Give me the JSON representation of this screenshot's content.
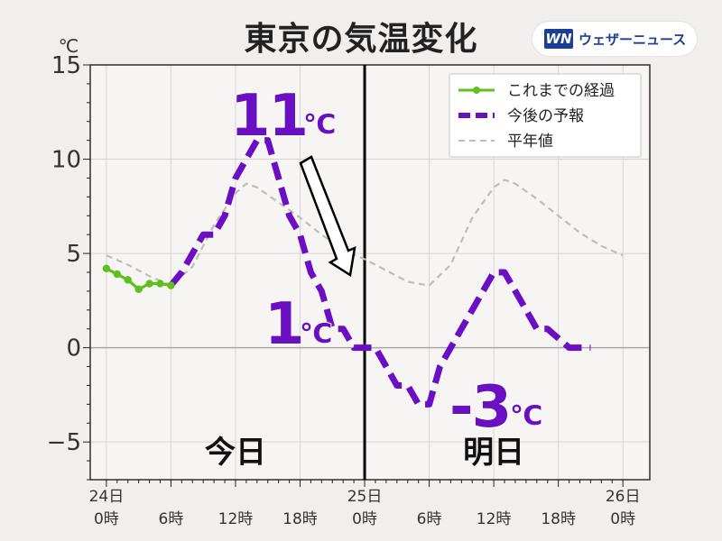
{
  "title": "東京の気温変化",
  "brand": {
    "logo": "WN",
    "name": "ウェザーニュース"
  },
  "chart_data": {
    "type": "line",
    "title": "東京の気温変化",
    "ylabel": "℃",
    "ylim": [
      -7,
      15
    ],
    "xlim": [
      -1.5,
      50.5
    ],
    "yticks": [
      {
        "v": 15,
        "label": "15"
      },
      {
        "v": 10,
        "label": "10"
      },
      {
        "v": 5,
        "label": "5"
      },
      {
        "v": 0,
        "label": "0"
      },
      {
        "v": -5,
        "label": "−5"
      }
    ],
    "xticks": [
      {
        "x": 0,
        "top": "24日",
        "bottom": "0時"
      },
      {
        "x": 6,
        "top": "",
        "bottom": "6時"
      },
      {
        "x": 12,
        "top": "",
        "bottom": "12時"
      },
      {
        "x": 18,
        "top": "",
        "bottom": "18時"
      },
      {
        "x": 24,
        "top": "25日",
        "bottom": "0時"
      },
      {
        "x": 30,
        "top": "",
        "bottom": "6時"
      },
      {
        "x": 36,
        "top": "",
        "bottom": "12時"
      },
      {
        "x": 42,
        "top": "",
        "bottom": "18時"
      },
      {
        "x": 48,
        "top": "26日",
        "bottom": "0時"
      }
    ],
    "day_divider_x": 24,
    "series": [
      {
        "name": "これまでの経過",
        "color": "#5fbf1c",
        "style": "solid-markers",
        "points": [
          [
            0,
            4.2
          ],
          [
            1,
            3.9
          ],
          [
            2,
            3.6
          ],
          [
            3,
            3.1
          ],
          [
            4,
            3.4
          ],
          [
            5,
            3.4
          ],
          [
            6,
            3.3
          ]
        ]
      },
      {
        "name": "今後の予報",
        "color": "#6a0fc2",
        "style": "dashed",
        "points": [
          [
            6,
            3.3
          ],
          [
            7,
            4.0
          ],
          [
            8,
            5.0
          ],
          [
            9,
            6.0
          ],
          [
            10,
            6.0
          ],
          [
            11,
            7.0
          ],
          [
            12,
            9.0
          ],
          [
            13,
            10.0
          ],
          [
            14,
            11.0
          ],
          [
            15,
            11.0
          ],
          [
            16,
            9.0
          ],
          [
            17,
            7.0
          ],
          [
            18,
            6.0
          ],
          [
            19,
            4.0
          ],
          [
            20,
            3.0
          ],
          [
            21,
            1.0
          ],
          [
            22,
            1.0
          ],
          [
            23,
            0.0
          ],
          [
            24,
            0.0
          ],
          [
            25,
            0.0
          ],
          [
            26,
            -1.0
          ],
          [
            27,
            -2.0
          ],
          [
            28,
            -2.0
          ],
          [
            29,
            -3.0
          ],
          [
            30,
            -3.0
          ],
          [
            31,
            -1.0
          ],
          [
            32,
            0.0
          ],
          [
            33,
            1.0
          ],
          [
            34,
            2.0
          ],
          [
            35,
            3.0
          ],
          [
            36,
            4.0
          ],
          [
            37,
            4.0
          ],
          [
            38,
            3.0
          ],
          [
            39,
            2.0
          ],
          [
            40,
            1.0
          ],
          [
            41,
            1.0
          ],
          [
            42,
            0.5
          ],
          [
            43,
            0.0
          ],
          [
            44,
            0.0
          ],
          [
            45,
            0.0
          ]
        ]
      },
      {
        "name": "平年値",
        "color": "#bdbdbd",
        "style": "thin-dashed",
        "points": [
          [
            0,
            4.9
          ],
          [
            2,
            4.4
          ],
          [
            4,
            3.8
          ],
          [
            6,
            3.3
          ],
          [
            8,
            4.3
          ],
          [
            10,
            6.5
          ],
          [
            12,
            8.2
          ],
          [
            13,
            8.7
          ],
          [
            14,
            8.5
          ],
          [
            16,
            7.7
          ],
          [
            18,
            6.9
          ],
          [
            20,
            6.0
          ],
          [
            22,
            5.2
          ],
          [
            24,
            4.7
          ],
          [
            26,
            4.1
          ],
          [
            28,
            3.5
          ],
          [
            30,
            3.3
          ],
          [
            32,
            4.4
          ],
          [
            34,
            6.9
          ],
          [
            36,
            8.5
          ],
          [
            37,
            8.9
          ],
          [
            38,
            8.7
          ],
          [
            40,
            7.9
          ],
          [
            42,
            7.0
          ],
          [
            44,
            6.1
          ],
          [
            46,
            5.4
          ],
          [
            48,
            4.9
          ]
        ]
      }
    ],
    "legend_position": "top-right",
    "annotations": [
      {
        "value": "11",
        "unit": "℃",
        "x": 15,
        "y": 11,
        "color": "#6a0fc2"
      },
      {
        "value": "1",
        "unit": "℃",
        "x": 21,
        "y": 1,
        "color": "#6a0fc2"
      },
      {
        "value": "-3",
        "unit": "℃",
        "x": 29,
        "y": -3,
        "color": "#6a0fc2"
      }
    ],
    "day_labels": [
      {
        "x": 12,
        "text": "今日"
      },
      {
        "x": 36,
        "text": "明日"
      }
    ]
  }
}
